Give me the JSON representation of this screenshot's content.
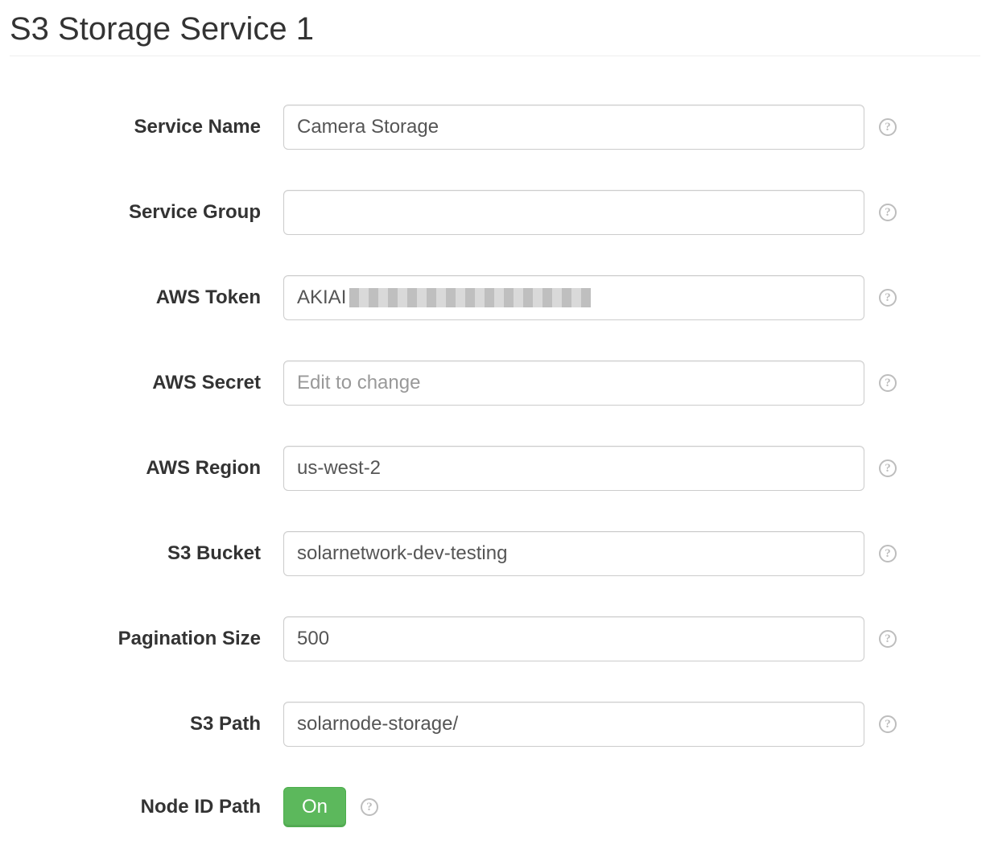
{
  "title": "S3 Storage Service 1",
  "help_glyph": "?",
  "colors": {
    "toggle_on_bg": "#5cb85c",
    "toggle_on_border": "#4cae4c",
    "input_border": "#cccccc",
    "text": "#333333",
    "placeholder": "#999999",
    "help_icon": "#bdbdbd",
    "divider": "#eeeeee"
  },
  "fields": {
    "service_name": {
      "label": "Service Name",
      "value": "Camera Storage",
      "placeholder": ""
    },
    "service_group": {
      "label": "Service Group",
      "value": "",
      "placeholder": ""
    },
    "aws_token": {
      "label": "AWS Token",
      "visible_prefix": "AKIAI",
      "obscured": true
    },
    "aws_secret": {
      "label": "AWS Secret",
      "value": "",
      "placeholder": "Edit to change"
    },
    "aws_region": {
      "label": "AWS Region",
      "value": "us-west-2",
      "placeholder": ""
    },
    "s3_bucket": {
      "label": "S3 Bucket",
      "value": "solarnetwork-dev-testing",
      "placeholder": ""
    },
    "pagination_size": {
      "label": "Pagination Size",
      "value": "500",
      "placeholder": ""
    },
    "s3_path": {
      "label": "S3 Path",
      "value": "solarnode-storage/",
      "placeholder": ""
    },
    "node_id_path": {
      "label": "Node ID Path",
      "toggle_state": "On"
    }
  }
}
